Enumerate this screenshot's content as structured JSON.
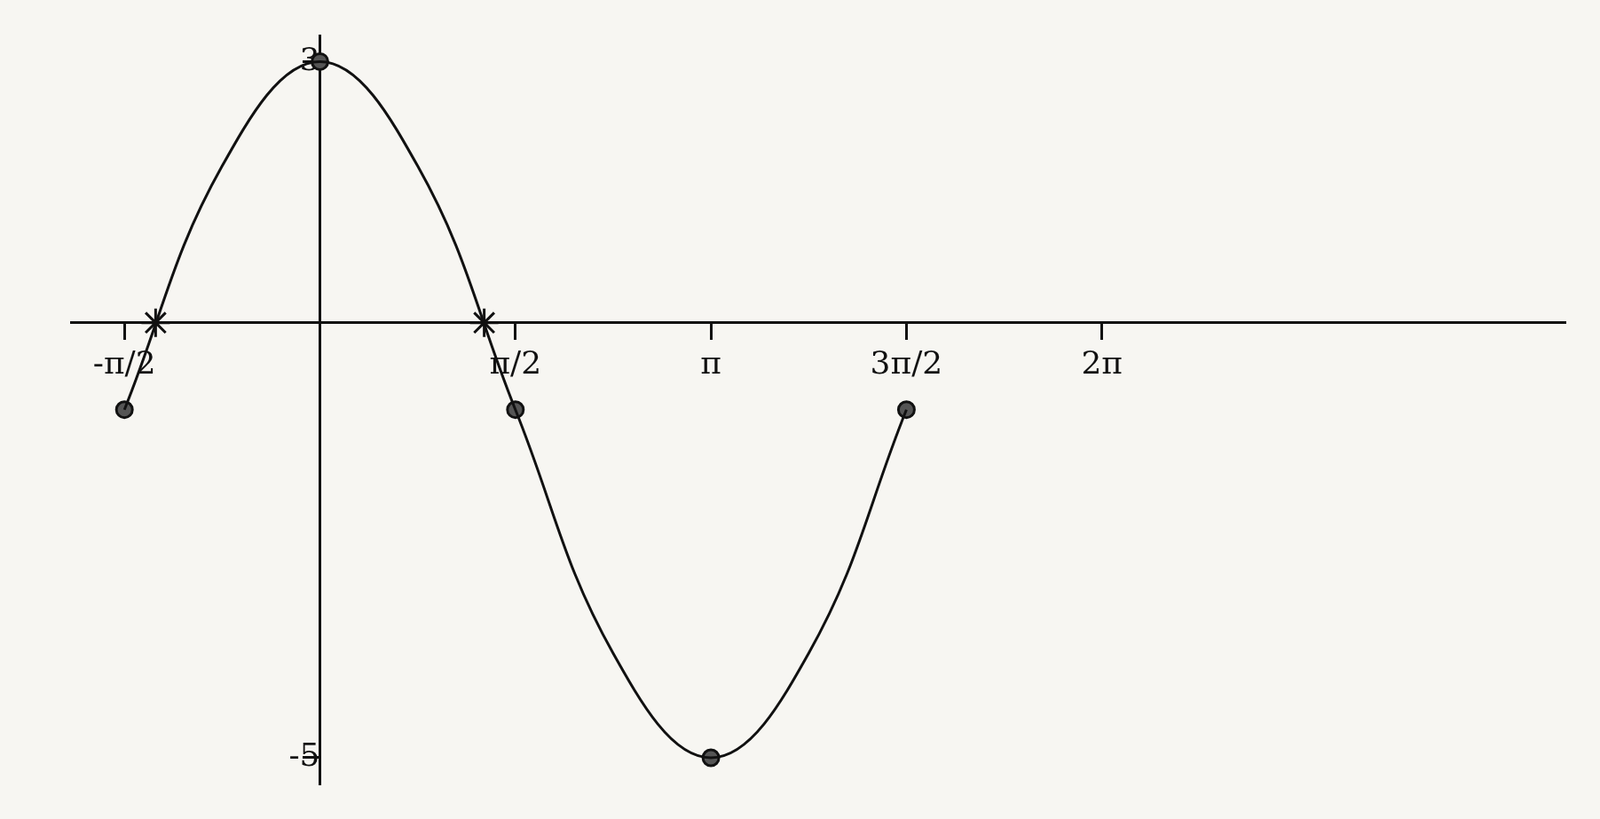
{
  "chart_data": {
    "type": "line",
    "xlim": [
      -2,
      10
    ],
    "xticks": [
      {
        "value": -1.5708,
        "label": "-π/2"
      },
      {
        "value": 1.5708,
        "label": "π/2"
      },
      {
        "value": 3.1416,
        "label": "π"
      },
      {
        "value": 4.7124,
        "label": "3π/2"
      },
      {
        "value": 6.2832,
        "label": "2π"
      }
    ],
    "ylim": [
      -5.3,
      3.3
    ],
    "yticks": [
      -5,
      3
    ],
    "grid": false,
    "series": [
      {
        "type": "line",
        "color": "#111111",
        "marker": "none",
        "line_style": "solid",
        "x": [
          -1.5708,
          -0.7854,
          0,
          0.7854,
          1.5708,
          2.3562,
          3.1416,
          3.927,
          4.7124
        ],
        "values": [
          -1,
          1.8,
          3,
          1.8,
          -1,
          -3.8,
          -5,
          -3.8,
          -1
        ]
      },
      {
        "type": "scatter",
        "color": "#111111",
        "marker": "circle",
        "x": [
          -1.5708,
          0,
          1.5708,
          3.1416,
          4.7124
        ],
        "values": [
          -1,
          3,
          -1,
          -5,
          -1
        ]
      },
      {
        "type": "scatter",
        "color": "#111111",
        "marker": "star",
        "x": [
          -1.32,
          1.32
        ],
        "values": [
          0,
          0
        ]
      }
    ]
  }
}
